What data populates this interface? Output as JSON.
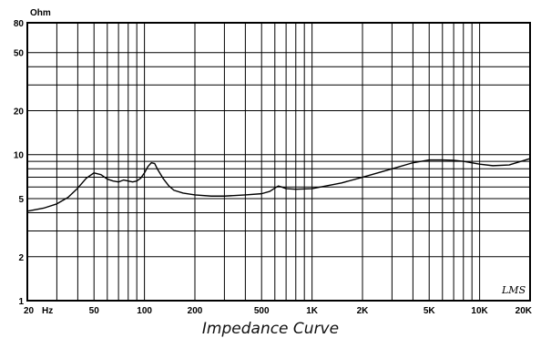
{
  "chart_data": {
    "type": "line",
    "title": "",
    "caption": "Impedance Curve",
    "ylabel": "Ohm",
    "xlabel": "",
    "x_scale": "log",
    "y_scale": "log",
    "xlim": [
      20,
      20000
    ],
    "ylim": [
      1,
      80
    ],
    "grid": true,
    "x_ticks": [
      {
        "v": 20,
        "label": "20"
      },
      {
        "v": 50,
        "label": "50"
      },
      {
        "v": 100,
        "label": "100"
      },
      {
        "v": 200,
        "label": "200"
      },
      {
        "v": 500,
        "label": "500"
      },
      {
        "v": 1000,
        "label": "1K"
      },
      {
        "v": 2000,
        "label": "2K"
      },
      {
        "v": 5000,
        "label": "5K"
      },
      {
        "v": 10000,
        "label": "10K"
      },
      {
        "v": 20000,
        "label": "20K"
      }
    ],
    "x_unit": "Hz",
    "y_ticks": [
      {
        "v": 1,
        "label": "1"
      },
      {
        "v": 2,
        "label": "2"
      },
      {
        "v": 5,
        "label": "5"
      },
      {
        "v": 10,
        "label": "10"
      },
      {
        "v": 20,
        "label": "20"
      },
      {
        "v": 50,
        "label": "50"
      },
      {
        "v": 80,
        "label": "80"
      }
    ],
    "x_grid": [
      20,
      30,
      40,
      50,
      60,
      70,
      80,
      90,
      100,
      200,
      300,
      400,
      500,
      600,
      700,
      800,
      900,
      1000,
      2000,
      3000,
      4000,
      5000,
      6000,
      7000,
      8000,
      9000,
      10000,
      20000
    ],
    "y_grid": [
      1,
      2,
      3,
      4,
      5,
      6,
      7,
      8,
      9,
      10,
      20,
      30,
      40,
      50,
      80
    ],
    "series": [
      {
        "name": "",
        "color": "#000000",
        "x": [
          20,
          25,
          30,
          35,
          40,
          45,
          50,
          55,
          60,
          65,
          70,
          75,
          80,
          85,
          90,
          95,
          100,
          105,
          110,
          115,
          120,
          130,
          140,
          150,
          170,
          200,
          250,
          300,
          400,
          500,
          560,
          600,
          630,
          660,
          700,
          800,
          1000,
          1500,
          2000,
          3000,
          4000,
          5000,
          6000,
          7000,
          8000,
          10000,
          12000,
          15000,
          20000
        ],
        "y": [
          4.1,
          4.3,
          4.6,
          5.1,
          5.9,
          6.9,
          7.5,
          7.3,
          6.8,
          6.6,
          6.5,
          6.7,
          6.6,
          6.5,
          6.6,
          6.9,
          7.5,
          8.3,
          8.8,
          8.7,
          7.9,
          6.8,
          6.1,
          5.7,
          5.45,
          5.3,
          5.2,
          5.2,
          5.3,
          5.4,
          5.6,
          5.9,
          6.1,
          6.0,
          5.85,
          5.8,
          5.85,
          6.4,
          7.0,
          8.0,
          8.8,
          9.2,
          9.2,
          9.15,
          9.0,
          8.6,
          8.4,
          8.5,
          9.4
        ]
      }
    ],
    "signature": "LMS"
  }
}
